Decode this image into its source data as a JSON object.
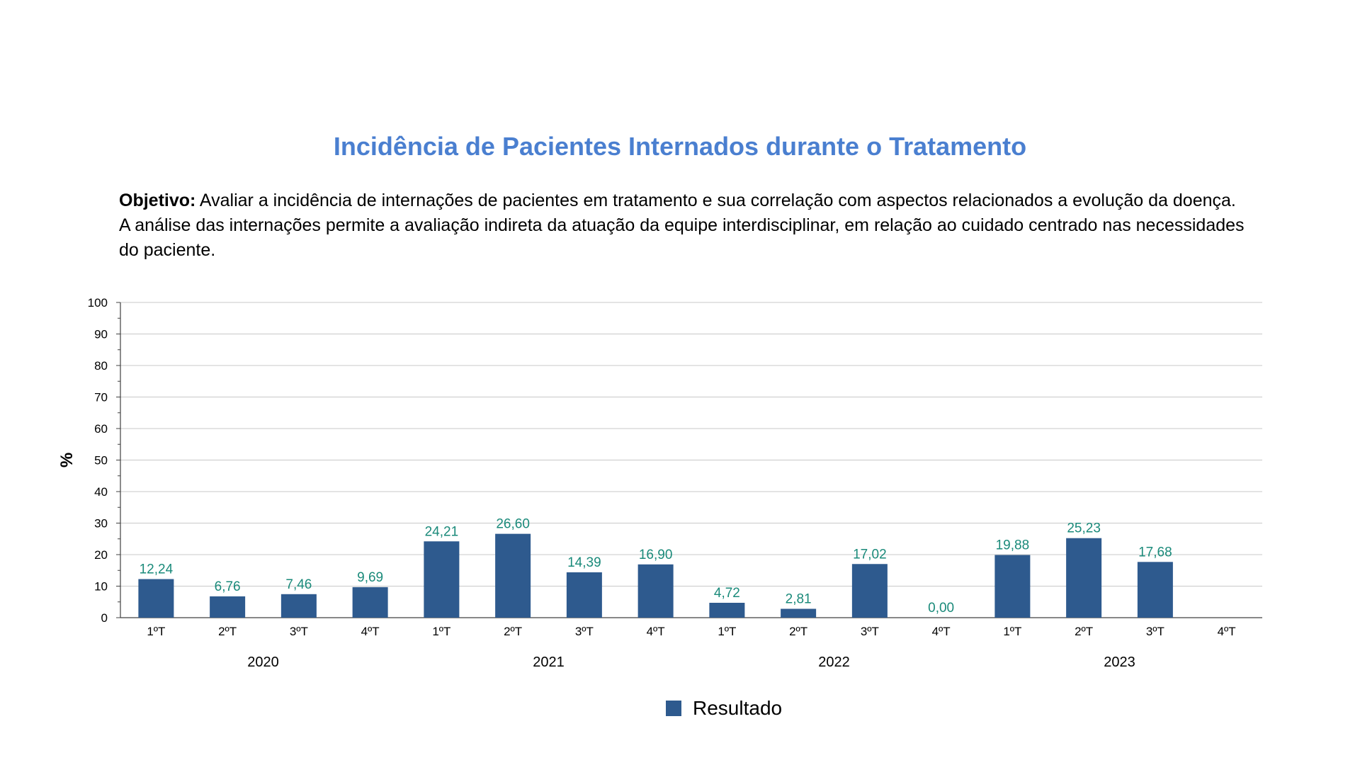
{
  "page": {
    "title": "Incidência de Pacientes Internados durante o Tratamento",
    "objective_label": "Objetivo:",
    "objective_text": "Avaliar a incidência de internações de pacientes em tratamento e sua correlação com aspectos relacionados a evolução da doença. A análise das internações permite a avaliação indireta da atuação da equipe interdisciplinar, em relação ao cuidado centrado nas necessidades do paciente."
  },
  "chart_data": {
    "type": "bar",
    "title": "",
    "xlabel": "",
    "ylabel": "%",
    "ylim": [
      0,
      100
    ],
    "yticks": [
      0,
      10,
      20,
      30,
      40,
      50,
      60,
      70,
      80,
      90,
      100
    ],
    "grid": true,
    "legend_position": "bottom",
    "categories": [
      "1ºT",
      "2ºT",
      "3ºT",
      "4ºT",
      "1ºT",
      "2ºT",
      "3ºT",
      "4ºT",
      "1ºT",
      "2ºT",
      "3ºT",
      "4ºT",
      "1ºT",
      "2ºT",
      "3ºT",
      "4ºT"
    ],
    "groups": [
      {
        "label": "2020",
        "count": 4
      },
      {
        "label": "2021",
        "count": 4
      },
      {
        "label": "2022",
        "count": 4
      },
      {
        "label": "2023",
        "count": 4
      }
    ],
    "series": [
      {
        "name": "Resultado",
        "color": "#2e5a8e",
        "label_color": "#1a8a7a",
        "values": [
          12.24,
          6.76,
          7.46,
          9.69,
          24.21,
          26.6,
          14.39,
          16.9,
          4.72,
          2.81,
          17.02,
          0.0,
          19.88,
          25.23,
          17.68,
          null
        ],
        "labels": [
          "12,24",
          "6,76",
          "7,46",
          "9,69",
          "24,21",
          "26,60",
          "14,39",
          "16,90",
          "4,72",
          "2,81",
          "17,02",
          "0,00",
          "19,88",
          "25,23",
          "17,68",
          ""
        ]
      }
    ]
  }
}
